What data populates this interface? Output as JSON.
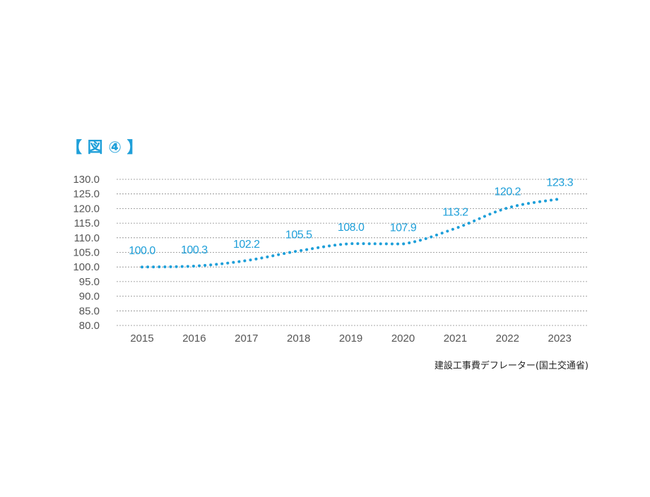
{
  "figure_label": "【 図 ④ 】",
  "chart_data": {
    "type": "line",
    "title": "",
    "xlabel": "",
    "ylabel": "",
    "categories": [
      "2015",
      "2016",
      "2017",
      "2018",
      "2019",
      "2020",
      "2021",
      "2022",
      "2023"
    ],
    "values": [
      100.0,
      100.3,
      102.2,
      105.5,
      108.0,
      107.9,
      113.2,
      120.2,
      123.3
    ],
    "data_labels": [
      "100.0",
      "100.3",
      "102.2",
      "105.5",
      "108.0",
      "107.9",
      "113.2",
      "120.2",
      "123.3"
    ],
    "y_ticks": [
      "130.0",
      "125.0",
      "120.0",
      "115.0",
      "110.0",
      "105.0",
      "100.0",
      "95.0",
      "90.0",
      "85.0",
      "80.0"
    ],
    "ylim": [
      80,
      130
    ],
    "grid": true,
    "line_style": "dotted",
    "series_color": "#1e9fd9"
  },
  "source_note": "建設工事費デフレーター(国土交通省)"
}
